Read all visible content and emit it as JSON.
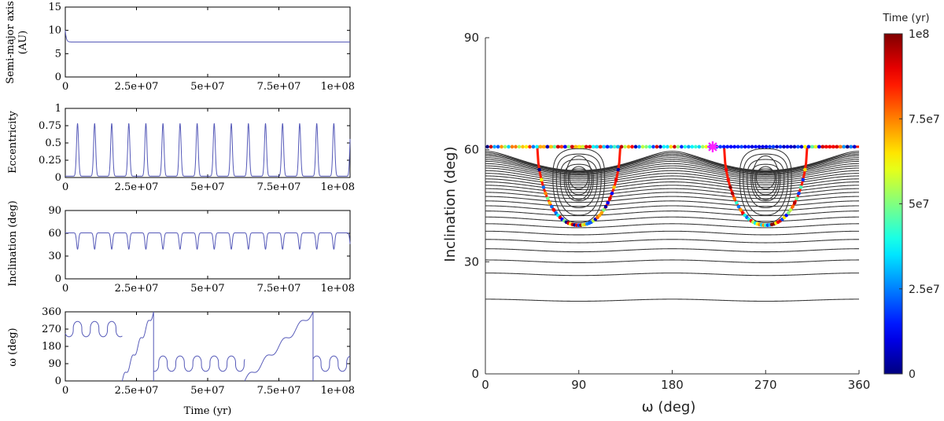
{
  "chart_data": [
    {
      "type": "line",
      "panel": "semi-major-axis",
      "ylabel_lines": [
        "Semi-major axis",
        "(AU)"
      ],
      "ylim": [
        0,
        15
      ],
      "yticks": [
        "0",
        "5",
        "10",
        "15"
      ],
      "ytick_values": [
        0,
        5,
        10,
        15
      ],
      "xlim": [
        0,
        100000000
      ],
      "xticks": [
        "0",
        "2.5e+07",
        "5e+07",
        "7.5e+07",
        "1e+08"
      ],
      "xtick_values": [
        0,
        25000000,
        50000000,
        75000000,
        100000000
      ],
      "series": [
        {
          "name": "a",
          "initial": 10,
          "settled": 7.5
        }
      ]
    },
    {
      "type": "line",
      "panel": "eccentricity",
      "ylabel_lines": [
        "Eccentricity"
      ],
      "ylim": [
        0,
        1
      ],
      "yticks": [
        "0",
        "0.25",
        "0.5",
        "0.75",
        "1"
      ],
      "ytick_values": [
        0,
        0.25,
        0.5,
        0.75,
        1
      ],
      "xlim": [
        0,
        100000000
      ],
      "xticks": [
        "0",
        "2.5e+07",
        "5e+07",
        "7.5e+07",
        "1e+08"
      ],
      "xtick_values": [
        0,
        25000000,
        50000000,
        75000000,
        100000000
      ],
      "series": [
        {
          "name": "e",
          "min": 0.02,
          "max": 0.78,
          "period": 6000000,
          "first_peak": 4300000
        }
      ]
    },
    {
      "type": "line",
      "panel": "inclination",
      "ylabel_lines": [
        "Inclination (deg)"
      ],
      "ylim": [
        0,
        90
      ],
      "yticks": [
        "0",
        "30",
        "60",
        "90"
      ],
      "ytick_values": [
        0,
        30,
        60,
        90
      ],
      "xlim": [
        0,
        100000000
      ],
      "xticks": [
        "0",
        "2.5e+07",
        "5e+07",
        "7.5e+07",
        "1e+08"
      ],
      "xtick_values": [
        0,
        25000000,
        50000000,
        75000000,
        100000000
      ],
      "series": [
        {
          "name": "i",
          "max": 60.5,
          "min": 39,
          "period": 6000000,
          "first_dip": 4300000
        }
      ]
    },
    {
      "type": "line",
      "panel": "omega",
      "ylabel_lines": [
        "ω (deg)"
      ],
      "ylim": [
        0,
        360
      ],
      "yticks": [
        "0",
        "90",
        "180",
        "270",
        "360"
      ],
      "ytick_values": [
        0,
        90,
        180,
        270,
        360
      ],
      "xlim": [
        0,
        100000000
      ],
      "xticks": [
        "0",
        "2.5e+07",
        "5e+07",
        "7.5e+07",
        "1e+08"
      ],
      "xtick_values": [
        0,
        25000000,
        50000000,
        75000000,
        100000000
      ],
      "xlabel": "Time (yr)",
      "series": [
        {
          "name": "omega",
          "segments": [
            {
              "t0": 0,
              "t1": 20000000,
              "mode": "lib",
              "center": 270,
              "amp": 40
            },
            {
              "t0": 20000000,
              "t1": 31000000,
              "mode": "circ",
              "from": 0,
              "to": 360
            },
            {
              "t0": 31000000,
              "t1": 63000000,
              "mode": "lib",
              "center": 90,
              "amp": 40
            },
            {
              "t0": 63000000,
              "t1": 87000000,
              "mode": "circ",
              "from": 0,
              "to": 360
            },
            {
              "t0": 87000000,
              "t1": 100000000,
              "mode": "lib",
              "center": 90,
              "amp": 40
            }
          ]
        }
      ]
    },
    {
      "type": "scatter",
      "panel": "phase-portrait",
      "xlabel": "ω (deg)",
      "ylabel": "Inclination (deg)",
      "xlim": [
        0,
        360
      ],
      "ylim": [
        0,
        90
      ],
      "xticks": [
        "0",
        "90",
        "180",
        "270",
        "360"
      ],
      "xtick_values": [
        0,
        90,
        180,
        270,
        360
      ],
      "yticks": [
        "0",
        "30",
        "60",
        "90"
      ],
      "ytick_values": [
        0,
        30,
        60,
        90
      ],
      "contours": {
        "circulating_i_at_0": [
          20,
          27,
          30.5,
          33.5,
          36,
          38.2,
          40.2,
          42,
          43.6,
          45,
          46.3,
          47.5,
          48.6,
          49.6,
          50.5,
          51.4,
          52.2,
          53,
          53.7,
          54.4,
          55.1,
          55.7,
          56.3,
          56.9,
          57.4,
          57.9,
          58.4,
          58.8,
          59.2,
          59.6
        ],
        "libration_min_i": [
          40.5,
          42.5,
          44.5,
          46.3,
          48
        ],
        "libration_centers_deg": [
          90,
          270
        ],
        "libration_center_i": 52
      },
      "trajectory": {
        "top_i": 60.8,
        "bottom_i": 39.8,
        "lobe1": [
          50,
          130
        ],
        "lobe2": [
          230,
          310
        ]
      },
      "marker": {
        "omega": 219,
        "i": 60.8,
        "color": "#ff22ff"
      },
      "colorbar": {
        "title": "Time (yr)",
        "ticks": [
          "0",
          "2.5e7",
          "5e7",
          "7.5e7",
          "1e8"
        ],
        "tick_values": [
          0,
          25000000,
          50000000,
          75000000,
          100000000
        ],
        "colormap": "jet"
      }
    }
  ]
}
